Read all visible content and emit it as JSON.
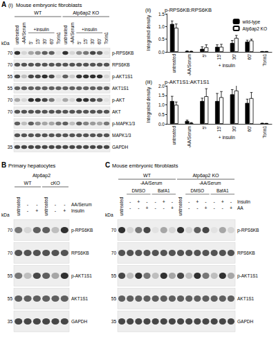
{
  "panels": [
    {
      "label": "A",
      "subpanel": "(i)",
      "title": "Mouse embryonic fibroblasts",
      "kda_header": "kDa",
      "groups": [
        "WT",
        "Atp6ap2 KO"
      ],
      "lanes": [
        "untreated",
        "-AA/Serum",
        {
          "label": "+insulin",
          "lanes": [
            "5'",
            "15'",
            "30'",
            "60'"
          ]
        },
        "Torin1"
      ],
      "rows": [
        {
          "name": "p-RPS6KB",
          "kda": 70,
          "bands": [
            0.8,
            0.1,
            0.3,
            0.4,
            0.6,
            0.6,
            0.05,
            0.8,
            0.1,
            0.4,
            0.5,
            0.7,
            0.6,
            0.05
          ]
        },
        {
          "name": "RPS6KB",
          "kda": 70,
          "bands": [
            0.65,
            0.65,
            0.65,
            0.65,
            0.65,
            0.65,
            0.65,
            0.65,
            0.65,
            0.65,
            0.65,
            0.65,
            0.65,
            0.65
          ]
        },
        {
          "name": "p-AKT1S1",
          "kda": 55,
          "bands": [
            0.7,
            0.2,
            0.7,
            0.7,
            0.8,
            0.7,
            0.1,
            0.6,
            0.15,
            0.8,
            0.8,
            0.8,
            0.8,
            0.1
          ]
        },
        {
          "name": "AKT1S1",
          "kda": 55,
          "bands": [
            0.6,
            0.6,
            0.6,
            0.6,
            0.6,
            0.6,
            0.6,
            0.6,
            0.6,
            0.6,
            0.6,
            0.6,
            0.6,
            0.6
          ]
        },
        {
          "name": "p-AKT",
          "kda": 70,
          "bands": [
            0.3,
            0.1,
            0.8,
            0.8,
            0.7,
            0.5,
            0.05,
            0.3,
            0.1,
            0.8,
            0.8,
            0.7,
            0.6,
            0.05
          ]
        },
        {
          "name": "AKT",
          "kda": 70,
          "bands": [
            0.65,
            0.65,
            0.65,
            0.65,
            0.65,
            0.65,
            0.65,
            0.65,
            0.65,
            0.65,
            0.65,
            0.65,
            0.65,
            0.65
          ]
        },
        {
          "name": "p-MAPK1/3",
          "kda": null,
          "bands": [
            0.6,
            0.2,
            0.6,
            0.4,
            0.3,
            0.3,
            0.5,
            0.6,
            0.2,
            0.6,
            0.45,
            0.35,
            0.3,
            0.5
          ]
        },
        {
          "name": "MAPK1/3",
          "kda": null,
          "bands": [
            0.65,
            0.65,
            0.65,
            0.65,
            0.65,
            0.65,
            0.65,
            0.65,
            0.65,
            0.65,
            0.65,
            0.65,
            0.65,
            0.65
          ]
        },
        {
          "name": "GAPDH",
          "kda": 35,
          "bands": [
            0.7,
            0.7,
            0.7,
            0.7,
            0.7,
            0.7,
            0.7,
            0.7,
            0.7,
            0.7,
            0.7,
            0.7,
            0.7,
            0.7
          ]
        }
      ]
    },
    {
      "label": "B",
      "title": "Primary hepatocytes",
      "kda_header": "kDa",
      "group_header": "Atp6ap2",
      "groups": [
        "WT",
        "cKO"
      ],
      "lanes": [
        "untreated",
        null,
        null
      ],
      "conditions": [
        {
          "name": "AA/Serum",
          "marks": [
            null,
            "-",
            "-"
          ]
        },
        {
          "name": "Insulin",
          "marks": [
            null,
            "-",
            "+"
          ]
        }
      ],
      "rows": [
        {
          "name": "p-RPS6KB",
          "kda": 70,
          "bands": [
            0.5,
            0.1,
            0.6,
            0.6,
            0.2,
            0.8
          ]
        },
        {
          "name": "RPS6KB",
          "kda": 70,
          "bands": [
            0.65,
            0.65,
            0.65,
            0.65,
            0.65,
            0.65
          ]
        },
        {
          "name": "p-AKT1S1",
          "kda": 55,
          "bands": [
            0.5,
            0.2,
            0.7,
            0.6,
            0.3,
            0.8
          ]
        },
        {
          "name": "AKT1S1",
          "kda": 55,
          "bands": [
            0.6,
            0.6,
            0.6,
            0.6,
            0.6,
            0.6
          ]
        },
        {
          "name": "GAPDH",
          "kda": 35,
          "bands": [
            0.7,
            0.7,
            0.7,
            0.7,
            0.7,
            0.7
          ]
        }
      ]
    },
    {
      "label": "C",
      "title": "Mouse embryonic fibroblasts",
      "kda_header": "kDa",
      "groups": [
        "WT",
        "Atp6ap2 KO"
      ],
      "span_header": "-AA/Serum",
      "lanes": [
        "untreated",
        {
          "label": "DMSO",
          "lanes": [
            null,
            null,
            null
          ]
        },
        {
          "label": "BafA1",
          "lanes": [
            null,
            null,
            null
          ]
        }
      ],
      "conditions": [
        {
          "name": "Insulin",
          "marks": [
            null,
            "-",
            "+",
            "-",
            "-",
            "+",
            "-"
          ]
        },
        {
          "name": "AA",
          "marks": [
            null,
            "-",
            "-",
            "+",
            "-",
            "-",
            "+"
          ]
        }
      ],
      "rows": [
        {
          "name": "p-RPS6KB",
          "kda": 70,
          "bands": [
            0.8,
            0.1,
            0.5,
            0.7,
            0.05,
            0.3,
            0.1,
            0.8,
            0.1,
            0.6,
            0.7,
            0.05,
            0.3,
            0.1
          ]
        },
        {
          "name": "RPS6KB",
          "kda": 70,
          "bands": [
            0.65,
            0.65,
            0.65,
            0.65,
            0.65,
            0.65,
            0.65,
            0.65,
            0.65,
            0.65,
            0.65,
            0.65,
            0.65,
            0.65
          ]
        },
        {
          "name": "p-AKT1S1",
          "kda": 55,
          "bands": [
            0.7,
            0.2,
            0.8,
            0.5,
            0.2,
            0.8,
            0.3,
            0.7,
            0.2,
            0.8,
            0.5,
            0.2,
            0.8,
            0.3
          ]
        },
        {
          "name": "AKT1S1",
          "kda": 55,
          "bands": [
            0.6,
            0.6,
            0.6,
            0.6,
            0.6,
            0.6,
            0.6,
            0.6,
            0.6,
            0.6,
            0.6,
            0.6,
            0.6,
            0.6
          ]
        },
        {
          "name": "GAPDH",
          "kda": 35,
          "bands": [
            0.7,
            0.7,
            0.7,
            0.7,
            0.7,
            0.7,
            0.7,
            0.7,
            0.7,
            0.7,
            0.7,
            0.7,
            0.7,
            0.7
          ]
        }
      ]
    }
  ],
  "chart_data": [
    {
      "type": "bar",
      "panel_label": "(ii)",
      "title": "p-RPS6KB:RPS6KB",
      "ylabel": "Integrated density",
      "categories": [
        "untreated",
        "-AA/Serum",
        "5'",
        "15'",
        "30'",
        "60'",
        "Torin1"
      ],
      "category_groups": [
        {
          "label": "+ insulin",
          "categories": [
            "5'",
            "15'",
            "30'",
            "60'"
          ]
        }
      ],
      "series": [
        {
          "name": "wild-type",
          "color": "#000000",
          "values": [
            1.1,
            0.03,
            0.12,
            0.2,
            0.35,
            0.4,
            0.01
          ],
          "errors": [
            0.12,
            0.01,
            0.08,
            0.08,
            0.1,
            0.06,
            0.01
          ]
        },
        {
          "name": "Atp6ap2 KO",
          "color": "#ffffff",
          "values": [
            0.95,
            0.02,
            0.18,
            0.2,
            0.55,
            0.45,
            0.01
          ],
          "errors": [
            0.15,
            0.01,
            0.1,
            0.1,
            0.1,
            0.05,
            0.01
          ]
        }
      ],
      "ylim": [
        0,
        1.5
      ],
      "yticks": [
        {
          "value": 0,
          "label": "0.0"
        },
        0.5,
        {
          "value": 1,
          "label": "1.0"
        },
        1.5
      ],
      "grid": false,
      "legend": "upper right"
    },
    {
      "type": "bar",
      "panel_label": "(iii)",
      "title": "p-AKT1S1:AKT1S1",
      "ylabel": "Integrated density",
      "categories": [
        "untreated",
        "-AA/Serum",
        "5'",
        "15'",
        "30'",
        "60'",
        "Torin1"
      ],
      "category_groups": [
        {
          "label": "+ insulin",
          "categories": [
            "5'",
            "15'",
            "30'",
            "60'"
          ]
        }
      ],
      "series": [
        {
          "name": "wild-type",
          "color": "#000000",
          "values": [
            1.2,
            0.15,
            1.2,
            1.2,
            1.55,
            1.1,
            0.03
          ],
          "errors": [
            0.25,
            0.05,
            0.15,
            0.4,
            0.25,
            0.2,
            0.01
          ]
        },
        {
          "name": "Atp6ap2 KO",
          "color": "#ffffff",
          "values": [
            1.0,
            0.05,
            1.45,
            1.4,
            1.75,
            1.35,
            0.02
          ],
          "errors": [
            0.15,
            0.02,
            0.4,
            0.3,
            0.3,
            0.3,
            0.01
          ]
        }
      ],
      "ylim": [
        0,
        2
      ],
      "yticks": [
        {
          "value": 0,
          "label": "0.0"
        },
        0.5,
        {
          "value": 1,
          "label": "1.0"
        },
        1.5,
        {
          "value": 2,
          "label": "2.0"
        }
      ],
      "grid": false
    }
  ]
}
